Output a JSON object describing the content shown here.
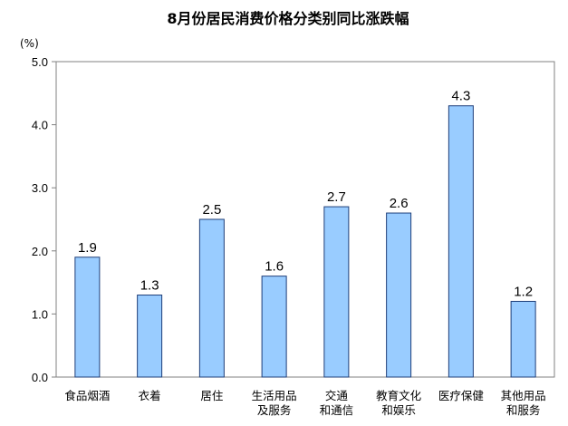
{
  "chart_data": {
    "type": "bar",
    "title": "8月份居民消费价格分类别同比涨跌幅",
    "unit_label": "(%)",
    "categories": [
      [
        "食品烟酒"
      ],
      [
        "衣着"
      ],
      [
        "居住"
      ],
      [
        "生活用品",
        "及服务"
      ],
      [
        "交通",
        "和通信"
      ],
      [
        "教育文化",
        "和娱乐"
      ],
      [
        "医疗保健"
      ],
      [
        "其他用品",
        "和服务"
      ]
    ],
    "values": [
      1.9,
      1.3,
      2.5,
      1.6,
      2.7,
      2.6,
      4.3,
      1.2
    ],
    "value_labels": [
      "1.9",
      "1.3",
      "2.5",
      "1.6",
      "2.7",
      "2.6",
      "4.3",
      "1.2"
    ],
    "y_ticks": [
      "0.0",
      "1.0",
      "2.0",
      "3.0",
      "4.0",
      "5.0"
    ],
    "ylim": [
      0,
      5
    ],
    "grid": false,
    "legend": "none",
    "colors": {
      "bar_fill": "#99ccff",
      "bar_stroke": "#1f3f7a",
      "axis": "#808080"
    }
  }
}
